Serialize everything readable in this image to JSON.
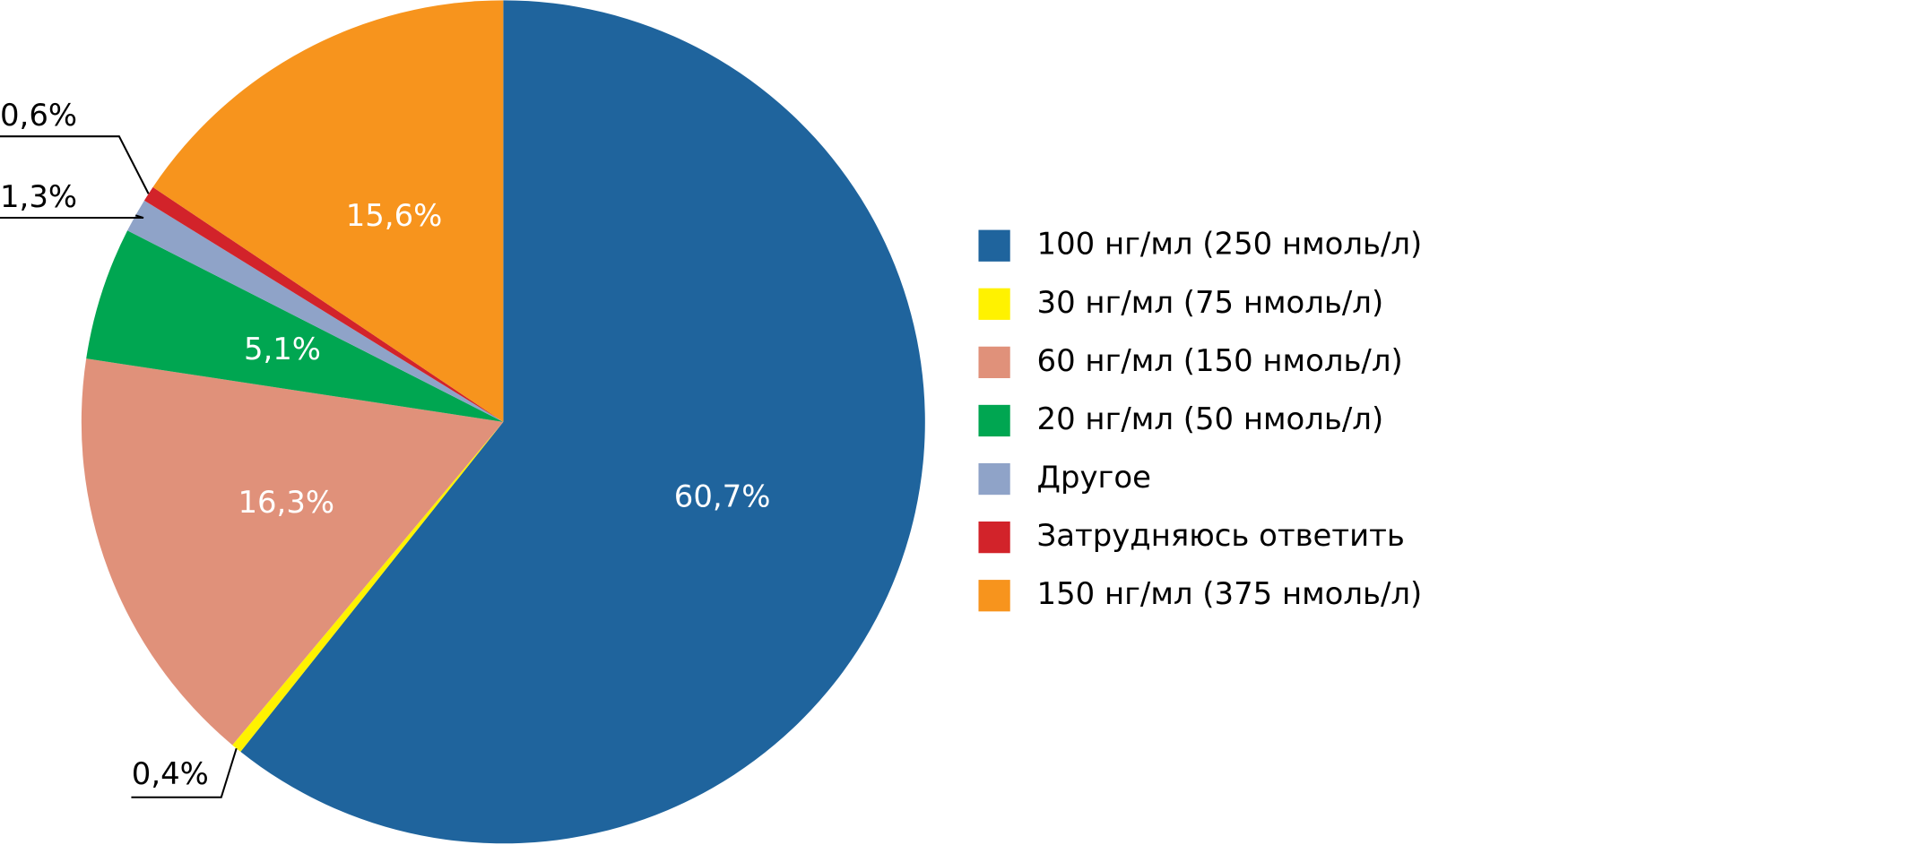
{
  "chart_data": {
    "type": "pie",
    "categories": [
      "100 нг/мл (250 нмоль/л)",
      "30 нг/мл (75 нмоль/л)",
      "60 нг/мл (150 нмоль/л)",
      "20 нг/мл (50 нмоль/л)",
      "Другое",
      "Затрудняюсь ответить",
      "150 нг/мл (375 нмоль/л)"
    ],
    "values": [
      60.7,
      0.4,
      16.3,
      5.1,
      1.3,
      0.6,
      15.6
    ],
    "value_labels": [
      "60,7%",
      "0,4%",
      "16,3%",
      "5,1%",
      "1,3%",
      "0,6%",
      "15,6%"
    ],
    "colors": [
      "#1f649d",
      "#fff200",
      "#e0917a",
      "#00a651",
      "#8fa3c8",
      "#d2232a",
      "#f7941d"
    ],
    "legend": "right"
  }
}
